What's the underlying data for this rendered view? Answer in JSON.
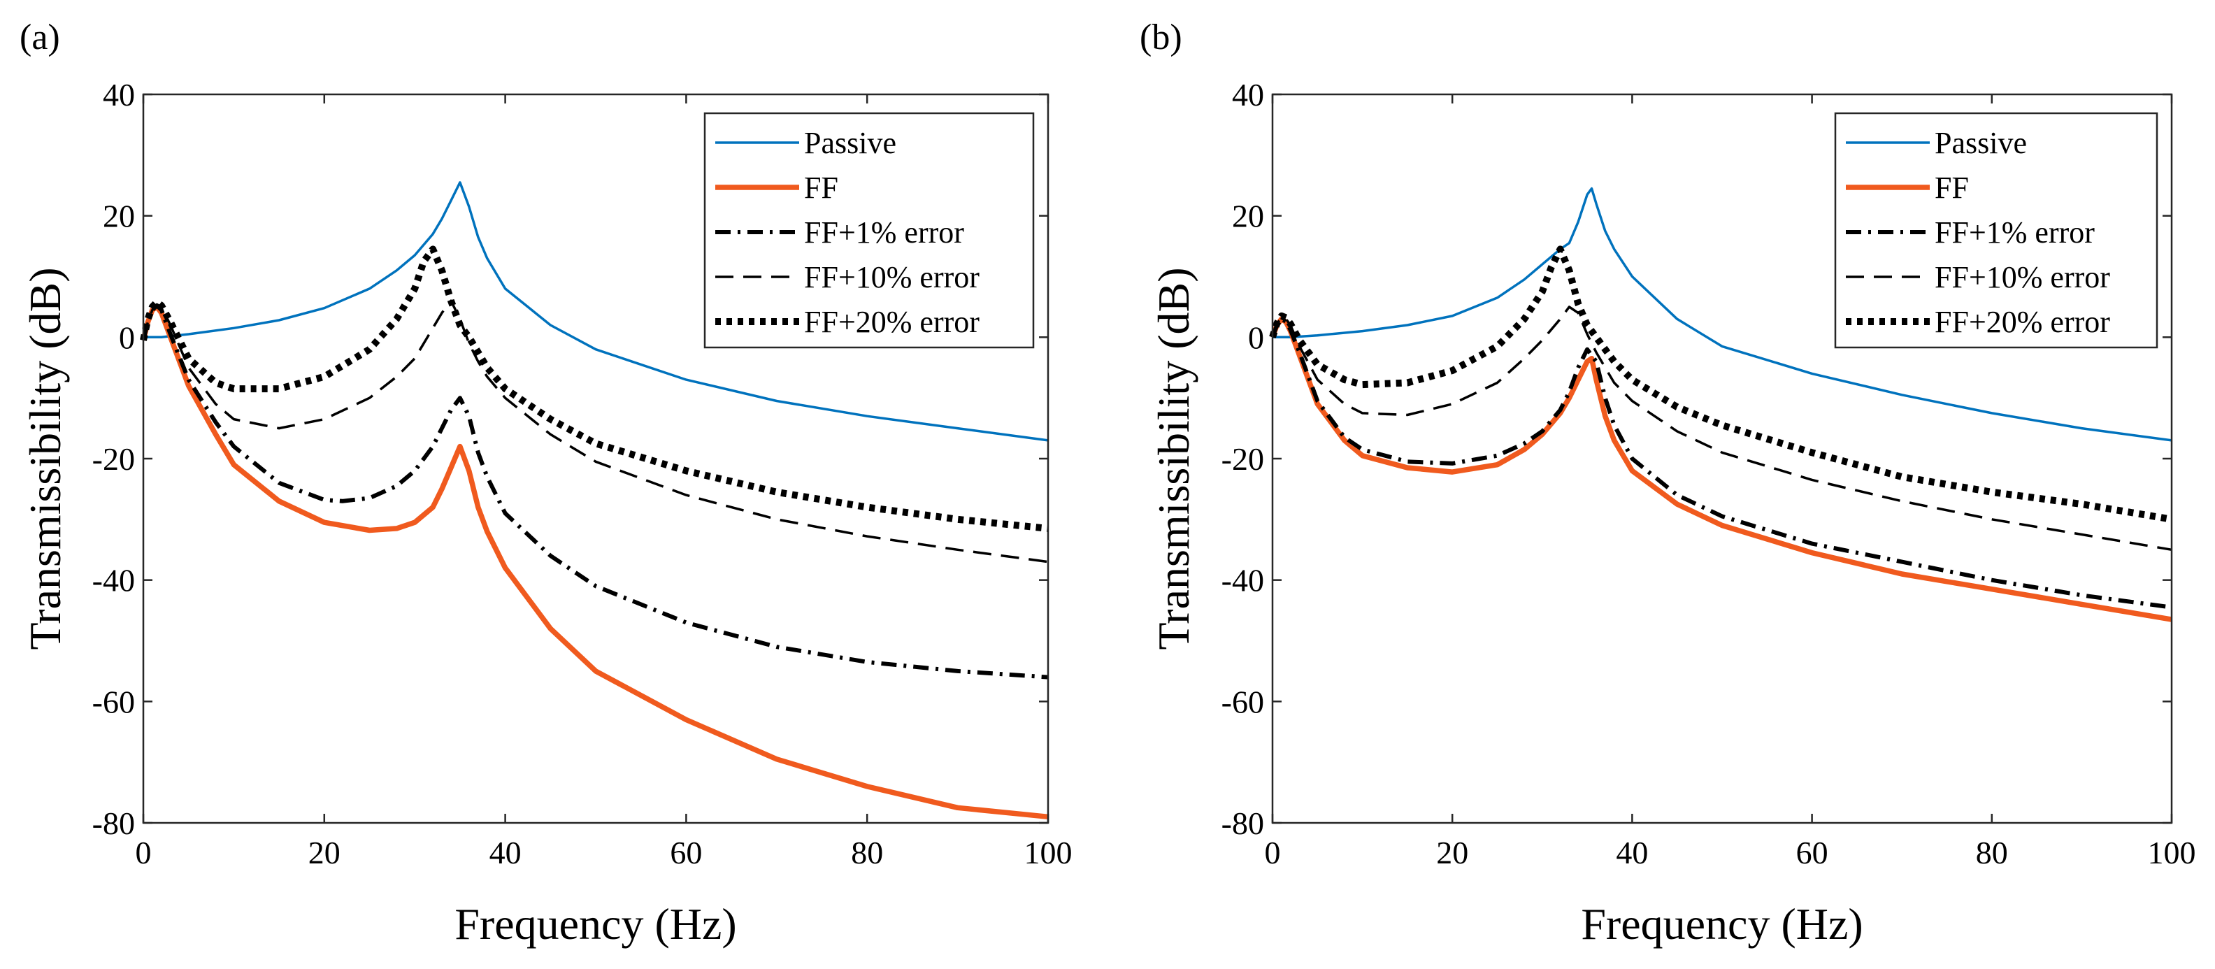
{
  "chart_data": [
    {
      "type": "line",
      "panel_label": "(a)",
      "xlabel": "Frequency (Hz)",
      "ylabel": "Transmissibility (dB)",
      "xlim": [
        0,
        100
      ],
      "ylim": [
        -80,
        40
      ],
      "xticks": [
        0,
        20,
        40,
        60,
        80,
        100
      ],
      "yticks": [
        -80,
        -60,
        -40,
        -20,
        0,
        20,
        40
      ],
      "grid": false,
      "legend": "top-right",
      "series": [
        {
          "name": "Passive",
          "style": "solid-thin",
          "color": "#0072BD",
          "x": [
            0,
            2,
            5,
            10,
            15,
            20,
            25,
            28,
            30,
            32,
            33,
            34,
            35,
            36,
            37,
            38,
            40,
            45,
            50,
            60,
            70,
            80,
            90,
            100
          ],
          "y": [
            0,
            0,
            0.5,
            1.5,
            2.8,
            4.8,
            8,
            11,
            13.5,
            17,
            19.5,
            22.5,
            25.5,
            21.5,
            16.5,
            13,
            8,
            2,
            -2,
            -7,
            -10.5,
            -13,
            -15,
            -17
          ]
        },
        {
          "name": "FF",
          "style": "solid-thick",
          "color": "#F05A1E",
          "x": [
            0,
            0.5,
            1,
            1.5,
            2,
            3,
            5,
            8,
            10,
            15,
            20,
            25,
            28,
            30,
            32,
            33,
            34,
            35,
            36,
            37,
            38,
            40,
            45,
            50,
            60,
            70,
            80,
            90,
            100
          ],
          "y": [
            -0.5,
            2.5,
            4.5,
            5,
            4,
            0,
            -8,
            -16,
            -21,
            -27,
            -30.5,
            -31.8,
            -31.5,
            -30.5,
            -28,
            -25,
            -21.5,
            -18,
            -22,
            -28,
            -32,
            -38,
            -48,
            -55,
            -63,
            -69.5,
            -74,
            -77.5,
            -79
          ]
        },
        {
          "name": "FF+1% error",
          "style": "dashdot",
          "color": "#000000",
          "x": [
            0,
            0.5,
            1,
            1.5,
            2,
            3,
            5,
            8,
            10,
            15,
            20,
            22,
            25,
            28,
            30,
            32,
            33,
            34,
            35,
            36,
            37,
            38,
            40,
            45,
            50,
            60,
            70,
            80,
            90,
            100
          ],
          "y": [
            -0.5,
            2.5,
            4.5,
            5.2,
            4.5,
            0.5,
            -7,
            -14,
            -18,
            -24,
            -26.8,
            -27,
            -26.5,
            -24.5,
            -22,
            -18,
            -15,
            -12,
            -10,
            -13,
            -19,
            -23,
            -29,
            -36,
            -41,
            -47,
            -51,
            -53.5,
            -55,
            -56
          ]
        },
        {
          "name": "FF+10% error",
          "style": "dashed",
          "color": "#000000",
          "x": [
            0,
            0.5,
            1,
            1.5,
            2,
            3,
            5,
            8,
            10,
            15,
            20,
            25,
            28,
            30,
            32,
            33,
            34,
            35,
            36,
            37,
            38,
            40,
            45,
            50,
            60,
            70,
            80,
            90,
            100
          ],
          "y": [
            -0.5,
            2.5,
            4.5,
            5.4,
            5,
            2,
            -5,
            -11,
            -13.5,
            -15,
            -13.5,
            -10,
            -6.5,
            -3.5,
            1.5,
            4,
            6,
            3,
            -1,
            -4,
            -6.5,
            -10,
            -16,
            -20.5,
            -26,
            -30,
            -32.8,
            -35,
            -37
          ]
        },
        {
          "name": "FF+20% error",
          "style": "dotted-thick",
          "color": "#000000",
          "x": [
            0,
            0.5,
            1,
            1.5,
            2,
            3,
            5,
            8,
            10,
            15,
            20,
            25,
            28,
            30,
            31,
            32,
            33,
            34,
            35,
            36,
            37,
            38,
            40,
            45,
            50,
            60,
            70,
            80,
            90,
            100
          ],
          "y": [
            -0.5,
            3,
            5,
            5.8,
            5.2,
            2.5,
            -3.5,
            -7.5,
            -8.5,
            -8.5,
            -6.5,
            -2,
            3,
            8,
            12.5,
            14.5,
            11,
            6,
            2,
            0,
            -2.5,
            -5,
            -8.5,
            -13.5,
            -17.5,
            -22,
            -25.5,
            -28,
            -30,
            -31.5
          ]
        }
      ]
    },
    {
      "type": "line",
      "panel_label": "(b)",
      "xlabel": "Frequency (Hz)",
      "ylabel": "Transmissibility (dB)",
      "xlim": [
        0,
        100
      ],
      "ylim": [
        -80,
        40
      ],
      "xticks": [
        0,
        20,
        40,
        60,
        80,
        100
      ],
      "yticks": [
        -80,
        -60,
        -40,
        -20,
        0,
        20,
        40
      ],
      "grid": false,
      "legend": "top-right",
      "series": [
        {
          "name": "Passive",
          "style": "solid-thin",
          "color": "#0072BD",
          "x": [
            0,
            2,
            5,
            10,
            15,
            20,
            25,
            28,
            30,
            32,
            33,
            34,
            35,
            35.5,
            36,
            37,
            38,
            40,
            45,
            50,
            60,
            70,
            80,
            90,
            100
          ],
          "y": [
            0,
            0,
            0.3,
            1,
            2,
            3.5,
            6.5,
            9.5,
            12,
            14.5,
            15.5,
            19,
            23.5,
            24.5,
            22,
            17.5,
            14.5,
            10,
            3,
            -1.5,
            -6,
            -9.5,
            -12.5,
            -15,
            -17
          ]
        },
        {
          "name": "FF",
          "style": "solid-thick",
          "color": "#F05A1E",
          "x": [
            0,
            0.5,
            1,
            1.5,
            2,
            3,
            5,
            8,
            10,
            15,
            20,
            25,
            28,
            30,
            32,
            33,
            34,
            35,
            35.5,
            36,
            37,
            38,
            40,
            45,
            50,
            60,
            70,
            80,
            90,
            100
          ],
          "y": [
            0,
            2,
            3,
            2.5,
            1,
            -3,
            -11,
            -17,
            -19.5,
            -21.5,
            -22.2,
            -21,
            -18.5,
            -16,
            -12.5,
            -10,
            -7,
            -4,
            -3.5,
            -7,
            -13,
            -17,
            -22,
            -27.5,
            -31,
            -35.5,
            -39,
            -41.5,
            -44,
            -46.5
          ]
        },
        {
          "name": "FF+1% error",
          "style": "dashdot",
          "color": "#000000",
          "x": [
            0,
            0.5,
            1,
            1.5,
            2,
            3,
            5,
            8,
            10,
            15,
            20,
            25,
            28,
            30,
            32,
            33,
            34,
            35,
            36,
            37,
            38,
            40,
            45,
            50,
            60,
            70,
            80,
            90,
            100
          ],
          "y": [
            0,
            2,
            3,
            2.6,
            1.2,
            -2.5,
            -10.5,
            -16.5,
            -18.5,
            -20.5,
            -20.8,
            -19.5,
            -17.5,
            -15.5,
            -12,
            -9,
            -5,
            -2,
            -4,
            -10,
            -14.5,
            -20,
            -26,
            -29.5,
            -34,
            -37,
            -40,
            -42.5,
            -44.5
          ]
        },
        {
          "name": "FF+10% error",
          "style": "dashed",
          "color": "#000000",
          "x": [
            0,
            0.5,
            1,
            1.5,
            2,
            3,
            5,
            8,
            10,
            15,
            20,
            25,
            28,
            30,
            32,
            33,
            34,
            35,
            36,
            37,
            38,
            40,
            45,
            50,
            60,
            70,
            80,
            90,
            100
          ],
          "y": [
            0,
            2.2,
            3.3,
            3,
            2,
            -1.5,
            -7,
            -11,
            -12.5,
            -12.8,
            -11,
            -7.5,
            -3.5,
            -0.5,
            3,
            5,
            4,
            0.5,
            -2.5,
            -5,
            -7.5,
            -10.5,
            -15.5,
            -19,
            -23.5,
            -27,
            -30,
            -32.5,
            -35
          ]
        },
        {
          "name": "FF+20% error",
          "style": "dotted-thick",
          "color": "#000000",
          "x": [
            0,
            0.5,
            1,
            1.5,
            2,
            3,
            5,
            8,
            10,
            15,
            20,
            25,
            28,
            30,
            31,
            32,
            33,
            34,
            35,
            36,
            37,
            38,
            40,
            45,
            50,
            60,
            70,
            80,
            90,
            100
          ],
          "y": [
            0,
            2.3,
            3.5,
            3.2,
            2.2,
            -0.5,
            -4.5,
            -7,
            -7.8,
            -7.5,
            -5.5,
            -1.5,
            3,
            7.5,
            11.5,
            14.5,
            11,
            5.5,
            2,
            0,
            -2,
            -4,
            -7,
            -11.5,
            -14.5,
            -19,
            -23,
            -25.5,
            -27.5,
            -30
          ]
        }
      ]
    }
  ]
}
